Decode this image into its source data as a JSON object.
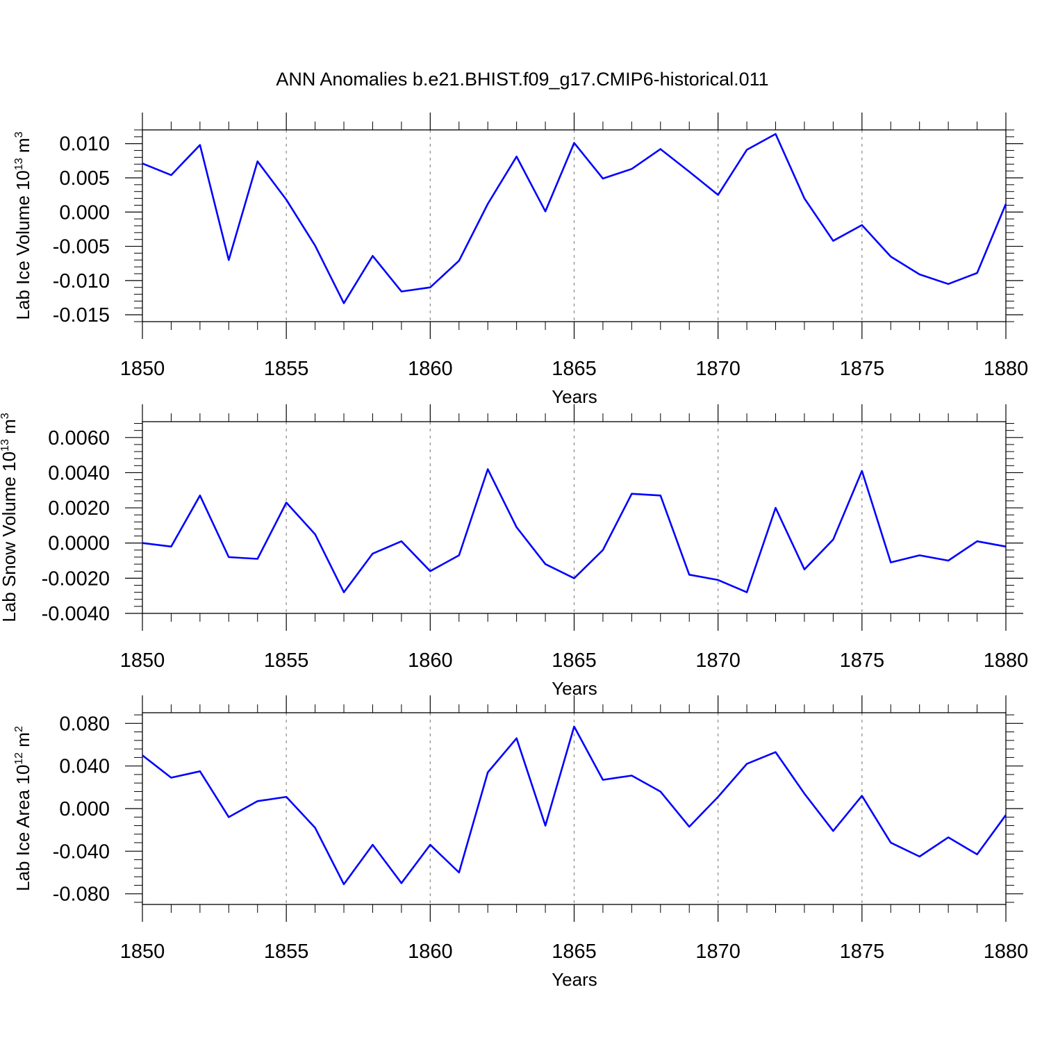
{
  "title": "ANN Anomalies b.e21.BHIST.f09_g17.CMIP6-historical.011",
  "line_color": "#0000ff",
  "grid_color": "#888888",
  "chart_data": [
    {
      "type": "line",
      "xlabel": "Years",
      "ylabel": "Lab Ice Volume 10",
      "ylabel_exp": "13",
      "ylabel_unit": "m",
      "ylabel_unit_exp": "3",
      "xlim": [
        1850,
        1880
      ],
      "ylim": [
        -0.016,
        0.012
      ],
      "x_ticks": [
        1850,
        1855,
        1860,
        1865,
        1870,
        1875,
        1880
      ],
      "y_ticks": [
        0.01,
        0.005,
        0.0,
        -0.005,
        -0.01,
        -0.015
      ],
      "y_tick_labels": [
        "0.010",
        "0.005",
        "0.000",
        "-0.005",
        "-0.010",
        "-0.015"
      ],
      "grid": "vertical dashed at major x ticks",
      "x": [
        1850,
        1851,
        1852,
        1853,
        1854,
        1855,
        1856,
        1857,
        1858,
        1859,
        1860,
        1861,
        1862,
        1863,
        1864,
        1865,
        1866,
        1867,
        1868,
        1869,
        1870,
        1871,
        1872,
        1873,
        1874,
        1875,
        1876,
        1877,
        1878,
        1879,
        1880
      ],
      "values": [
        0.0071,
        0.0054,
        0.0098,
        -0.007,
        0.0074,
        0.0018,
        -0.0049,
        -0.0133,
        -0.0064,
        -0.0116,
        -0.011,
        -0.0071,
        0.0012,
        0.0081,
        0.0001,
        0.0101,
        0.0049,
        0.0063,
        0.0092,
        0.0059,
        0.0025,
        0.0091,
        0.0114,
        0.002,
        -0.0042,
        -0.0019,
        -0.0065,
        -0.0091,
        -0.0105,
        -0.0089,
        0.0012
      ]
    },
    {
      "type": "line",
      "xlabel": "Years",
      "ylabel": "Lab Snow Volume 10",
      "ylabel_exp": "13",
      "ylabel_unit": "m",
      "ylabel_unit_exp": "3",
      "xlim": [
        1850,
        1880
      ],
      "ylim": [
        -0.004,
        0.0069
      ],
      "x_ticks": [
        1850,
        1855,
        1860,
        1865,
        1870,
        1875,
        1880
      ],
      "y_ticks": [
        0.006,
        0.004,
        0.002,
        0.0,
        -0.002,
        -0.004
      ],
      "y_tick_labels": [
        "0.0060",
        "0.0040",
        "0.0020",
        "0.0000",
        "-0.0020",
        "-0.0040"
      ],
      "grid": "vertical dashed at major x ticks",
      "x": [
        1850,
        1851,
        1852,
        1853,
        1854,
        1855,
        1856,
        1857,
        1858,
        1859,
        1860,
        1861,
        1862,
        1863,
        1864,
        1865,
        1866,
        1867,
        1868,
        1869,
        1870,
        1871,
        1872,
        1873,
        1874,
        1875,
        1876,
        1877,
        1878,
        1879,
        1880
      ],
      "values": [
        0.0,
        -0.0002,
        0.0027,
        -0.0008,
        -0.0009,
        0.0023,
        0.0005,
        -0.0028,
        -0.0006,
        0.0001,
        -0.0016,
        -0.0007,
        0.0042,
        0.0009,
        -0.0012,
        -0.002,
        -0.0004,
        0.0028,
        0.0027,
        -0.0018,
        -0.0021,
        -0.0028,
        0.002,
        -0.0015,
        0.0002,
        0.0041,
        -0.0011,
        -0.0007,
        -0.001,
        0.0001,
        -0.0002
      ]
    },
    {
      "type": "line",
      "xlabel": "Years",
      "ylabel": "Lab Ice Area 10",
      "ylabel_exp": "12",
      "ylabel_unit": "m",
      "ylabel_unit_exp": "2",
      "xlim": [
        1850,
        1880
      ],
      "ylim": [
        -0.09,
        0.09
      ],
      "x_ticks": [
        1850,
        1855,
        1860,
        1865,
        1870,
        1875,
        1880
      ],
      "y_ticks": [
        0.08,
        0.04,
        0.0,
        -0.04,
        -0.08
      ],
      "y_tick_labels": [
        "0.080",
        "0.040",
        "0.000",
        "-0.040",
        "-0.080"
      ],
      "grid": "vertical dashed at major x ticks",
      "x": [
        1850,
        1851,
        1852,
        1853,
        1854,
        1855,
        1856,
        1857,
        1858,
        1859,
        1860,
        1861,
        1862,
        1863,
        1864,
        1865,
        1866,
        1867,
        1868,
        1869,
        1870,
        1871,
        1872,
        1873,
        1874,
        1875,
        1876,
        1877,
        1878,
        1879,
        1880
      ],
      "values": [
        0.05,
        0.029,
        0.035,
        -0.008,
        0.007,
        0.011,
        -0.018,
        -0.071,
        -0.034,
        -0.07,
        -0.034,
        -0.06,
        0.034,
        0.066,
        -0.016,
        0.077,
        0.027,
        0.031,
        0.016,
        -0.017,
        0.011,
        0.042,
        0.053,
        0.014,
        -0.021,
        0.012,
        -0.032,
        -0.045,
        -0.027,
        -0.043,
        -0.006
      ]
    }
  ]
}
